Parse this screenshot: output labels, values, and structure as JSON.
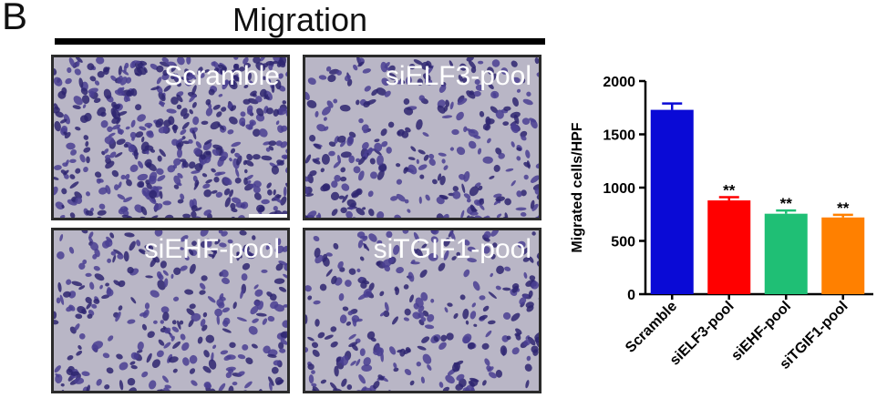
{
  "panel_letter": "B",
  "section_title": "Migration",
  "images": [
    {
      "label": "Scramble",
      "density": 1.0
    },
    {
      "label": "siELF3-pool",
      "density": 0.62
    },
    {
      "label": "siEHF-pool",
      "density": 0.58
    },
    {
      "label": "siTGIF1-pool",
      "density": 0.56
    }
  ],
  "colors": {
    "cell_fill": "#4a3f92",
    "cell_dark": "#2e2670",
    "background": "#b9b6c6"
  },
  "chart_data": {
    "type": "bar",
    "categories": [
      "Scramble",
      "siELF3-pool",
      "siEHF-pool",
      "siTGIF1-pool"
    ],
    "values": [
      1730,
      880,
      755,
      720
    ],
    "errors": [
      60,
      30,
      30,
      25
    ],
    "annotations": [
      "",
      "**",
      "**",
      "**"
    ],
    "colors": [
      "#0a0ad6",
      "#ff0000",
      "#1fbf75",
      "#ff8000"
    ],
    "ylabel": "Migrated cells/HPF",
    "xlabel": "",
    "ylim": [
      0,
      2000
    ],
    "yticks": [
      0,
      500,
      1000,
      1500,
      2000
    ],
    "grid": false
  }
}
